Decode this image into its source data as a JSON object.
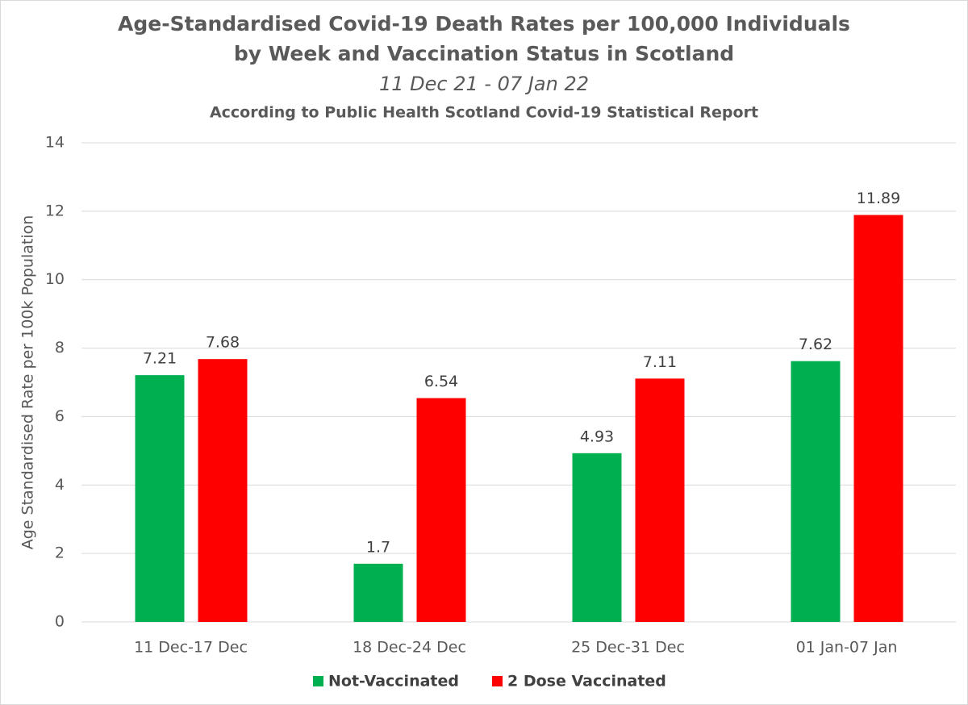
{
  "chart_data": {
    "type": "bar",
    "title": [
      "Age-Standardised Covid-19 Death Rates per 100,000 Individuals",
      "by Week and Vaccination Status in Scotland"
    ],
    "subtitle": "11 Dec 21 - 07 Jan 22",
    "subtitle2": "According to Public Health Scotland Covid-19 Statistical Report",
    "y_label": "Age Standardised Rate per 100k Population",
    "categories": [
      "11 Dec-17 Dec",
      "18 Dec-24 Dec",
      "25 Dec-31 Dec",
      "01 Jan-07 Jan"
    ],
    "series": [
      {
        "name": "Not-Vaccinated",
        "color": "#00b050",
        "values": [
          7.21,
          1.7,
          4.93,
          7.62
        ]
      },
      {
        "name": "2 Dose Vaccinated",
        "color": "#ff0000",
        "values": [
          7.68,
          6.54,
          7.11,
          11.89
        ]
      }
    ],
    "ylim": [
      0,
      14
    ],
    "yticks": [
      0,
      2,
      4,
      6,
      8,
      10,
      12,
      14
    ],
    "grid": true,
    "legend": "bottom"
  }
}
